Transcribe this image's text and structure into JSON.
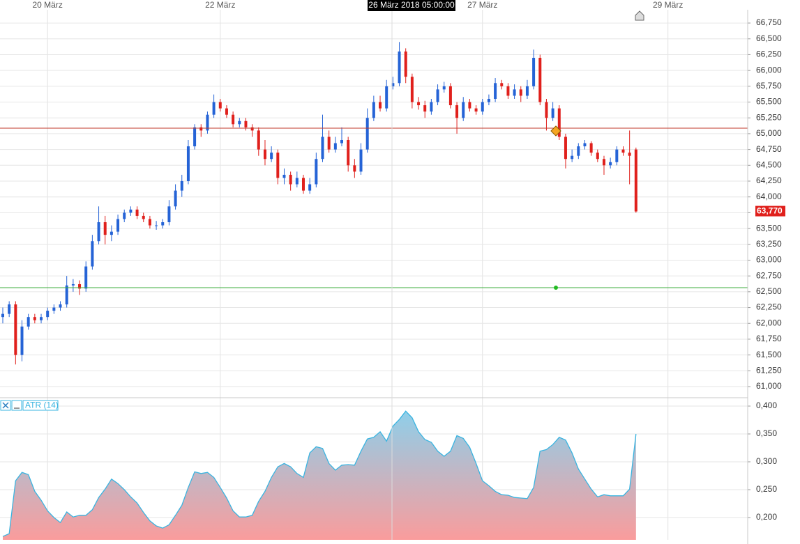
{
  "chart_data": [
    {
      "type": "candlestick",
      "crosshair": {
        "label": "26 März 2018 05:00:00"
      },
      "categories": [
        null,
        null,
        null,
        null,
        null,
        null,
        null,
        "20 März",
        null,
        null,
        null,
        null,
        null,
        null,
        null,
        null,
        null,
        null,
        null,
        null,
        null,
        null,
        null,
        null,
        null,
        null,
        null,
        null,
        null,
        null,
        null,
        null,
        null,
        null,
        "22 März",
        null,
        null,
        null,
        null,
        null,
        null,
        null,
        null,
        null,
        null,
        null,
        null,
        null,
        null,
        null,
        null,
        null,
        null,
        null,
        null,
        null,
        null,
        null,
        null,
        null,
        null,
        null,
        null,
        null,
        null,
        null,
        null,
        null,
        null,
        null,
        null,
        null,
        null,
        null,
        null,
        "27 März",
        null,
        null,
        null,
        null,
        null,
        null,
        null,
        null,
        null,
        null,
        null,
        null,
        null,
        null,
        null,
        null,
        null,
        null,
        null,
        null,
        null,
        null,
        null,
        null,
        null,
        null,
        null,
        null,
        "29 März"
      ],
      "open": [
        62.1,
        62.15,
        62.3,
        61.5,
        61.95,
        62.1,
        62.05,
        62.1,
        62.2,
        62.25,
        62.3,
        62.6,
        62.62,
        62.55,
        62.9,
        63.3,
        63.6,
        63.4,
        63.45,
        63.65,
        63.75,
        63.8,
        63.7,
        63.65,
        63.55,
        63.55,
        63.6,
        63.85,
        64.1,
        64.25,
        64.8,
        65.1,
        65.05,
        65.3,
        65.5,
        65.4,
        65.3,
        65.15,
        65.2,
        65.1,
        65.05,
        64.75,
        64.6,
        64.7,
        64.3,
        64.35,
        64.2,
        64.3,
        64.1,
        64.2,
        64.6,
        64.95,
        64.75,
        64.85,
        64.9,
        64.5,
        64.4,
        64.75,
        65.25,
        65.5,
        65.4,
        65.75,
        65.8,
        66.3,
        65.9,
        65.5,
        65.45,
        65.35,
        65.5,
        65.7,
        65.75,
        65.45,
        65.25,
        65.5,
        65.4,
        65.35,
        65.5,
        65.55,
        65.8,
        65.75,
        65.6,
        65.7,
        65.6,
        65.75,
        66.2,
        65.5,
        65.25,
        65.4,
        64.95,
        64.6,
        64.65,
        64.8,
        64.85,
        64.7,
        64.6,
        64.5,
        64.55,
        64.75,
        64.7,
        64.75,
        null,
        null,
        null,
        null,
        null
      ],
      "high": [
        62.25,
        62.35,
        62.35,
        62.05,
        62.15,
        62.15,
        62.15,
        62.25,
        62.3,
        62.35,
        62.75,
        62.7,
        62.68,
        62.98,
        63.4,
        63.85,
        63.7,
        63.55,
        63.72,
        63.8,
        63.85,
        63.85,
        63.75,
        63.7,
        63.62,
        63.65,
        63.95,
        64.2,
        64.35,
        64.9,
        65.15,
        65.15,
        65.35,
        65.62,
        65.55,
        65.45,
        65.35,
        65.25,
        65.25,
        65.15,
        65.1,
        64.9,
        64.8,
        64.75,
        64.45,
        64.4,
        64.4,
        64.35,
        64.3,
        64.7,
        65.3,
        65.05,
        64.95,
        65.1,
        64.95,
        64.6,
        64.85,
        65.4,
        65.6,
        65.6,
        65.85,
        65.9,
        66.45,
        66.35,
        65.95,
        65.58,
        65.52,
        65.55,
        65.78,
        65.82,
        65.8,
        65.5,
        65.58,
        65.55,
        65.45,
        65.55,
        65.62,
        65.88,
        65.85,
        65.8,
        65.78,
        65.75,
        65.85,
        66.33,
        66.25,
        65.55,
        65.5,
        65.45,
        65.0,
        64.75,
        64.85,
        64.9,
        64.88,
        64.75,
        64.65,
        64.62,
        64.8,
        64.8,
        65.05,
        64.78,
        null,
        null,
        null,
        null,
        null
      ],
      "low": [
        62.0,
        62.1,
        61.35,
        61.4,
        61.9,
        62.0,
        62.0,
        62.05,
        62.15,
        62.2,
        62.25,
        62.5,
        62.45,
        62.5,
        62.85,
        63.25,
        63.25,
        63.3,
        63.4,
        63.6,
        63.7,
        63.65,
        63.6,
        63.5,
        63.48,
        63.5,
        63.55,
        63.8,
        64.0,
        64.2,
        64.75,
        64.95,
        65.0,
        65.25,
        65.35,
        65.25,
        65.1,
        65.1,
        65.05,
        64.95,
        64.65,
        64.5,
        64.55,
        64.2,
        64.2,
        64.1,
        64.15,
        64.05,
        64.05,
        64.15,
        64.55,
        64.7,
        64.7,
        64.8,
        64.4,
        64.3,
        64.35,
        64.7,
        65.2,
        65.35,
        65.35,
        65.7,
        65.75,
        65.8,
        65.4,
        65.38,
        65.25,
        65.3,
        65.45,
        65.65,
        65.4,
        65.0,
        65.2,
        65.35,
        65.3,
        65.3,
        65.45,
        65.5,
        65.7,
        65.55,
        65.55,
        65.5,
        65.55,
        65.7,
        65.45,
        65.05,
        65.2,
        64.9,
        64.45,
        64.55,
        64.6,
        64.75,
        64.65,
        64.55,
        64.35,
        64.45,
        64.5,
        64.65,
        64.2,
        63.75,
        null,
        null,
        null,
        null,
        null
      ],
      "close": [
        62.15,
        62.3,
        61.5,
        61.95,
        62.1,
        62.05,
        62.1,
        62.2,
        62.25,
        62.3,
        62.6,
        62.62,
        62.55,
        62.9,
        63.3,
        63.6,
        63.4,
        63.45,
        63.65,
        63.75,
        63.8,
        63.7,
        63.65,
        63.55,
        63.55,
        63.6,
        63.85,
        64.1,
        64.25,
        64.8,
        65.1,
        65.05,
        65.3,
        65.5,
        65.4,
        65.3,
        65.15,
        65.2,
        65.1,
        65.05,
        64.75,
        64.6,
        64.7,
        64.3,
        64.35,
        64.2,
        64.3,
        64.1,
        64.2,
        64.6,
        64.95,
        64.75,
        64.85,
        64.9,
        64.5,
        64.4,
        64.75,
        65.25,
        65.5,
        65.4,
        65.75,
        65.8,
        66.3,
        65.9,
        65.5,
        65.45,
        65.35,
        65.5,
        65.7,
        65.75,
        65.45,
        65.25,
        65.5,
        65.4,
        65.35,
        65.5,
        65.55,
        65.8,
        65.75,
        65.6,
        65.7,
        65.6,
        65.75,
        66.2,
        65.5,
        65.25,
        65.4,
        64.95,
        64.6,
        64.65,
        64.8,
        64.85,
        64.7,
        64.6,
        64.5,
        64.55,
        64.75,
        64.7,
        64.65,
        63.77,
        null,
        null,
        null,
        null,
        null
      ],
      "up_color": "#2563d6",
      "down_color": "#e0201c",
      "hlines": [
        {
          "value": 65.087,
          "color": "#c0392b"
        },
        {
          "value": 62.565,
          "color": "#3cae3c"
        }
      ],
      "last_price": {
        "value": 63.77,
        "label": "63,770",
        "color": "#e0201c"
      },
      "ylim": [
        60.835,
        66.96
      ],
      "yticks": [
        {
          "value": 61.0,
          "label": "61,000"
        },
        {
          "value": 61.25,
          "label": "61,250"
        },
        {
          "value": 61.5,
          "label": "61,500"
        },
        {
          "value": 61.75,
          "label": "61,750"
        },
        {
          "value": 62.0,
          "label": "62,000"
        },
        {
          "value": 62.25,
          "label": "62,250"
        },
        {
          "value": 62.5,
          "label": "62,500"
        },
        {
          "value": 62.75,
          "label": "62,750"
        },
        {
          "value": 63.0,
          "label": "63,000"
        },
        {
          "value": 63.25,
          "label": "63,250"
        },
        {
          "value": 63.5,
          "label": "63,500"
        },
        {
          "value": 63.75,
          "label": "63,750"
        },
        {
          "value": 64.0,
          "label": "64,000"
        },
        {
          "value": 64.25,
          "label": "64,250"
        },
        {
          "value": 64.5,
          "label": "64,500"
        },
        {
          "value": 64.75,
          "label": "64,750"
        },
        {
          "value": 65.0,
          "label": "65,000"
        },
        {
          "value": 65.25,
          "label": "65,250"
        },
        {
          "value": 65.5,
          "label": "65,500"
        },
        {
          "value": 65.75,
          "label": "65,750"
        },
        {
          "value": 66.0,
          "label": "66,000"
        },
        {
          "value": 66.25,
          "label": "66,250"
        },
        {
          "value": 66.5,
          "label": "66,500"
        },
        {
          "value": 66.75,
          "label": "66,750"
        }
      ],
      "grid": true
    },
    {
      "type": "area",
      "name": "ATR (14)",
      "color": "#3ab4e0",
      "values": [
        0.166,
        0.171,
        0.266,
        0.281,
        0.277,
        0.247,
        0.231,
        0.212,
        0.2,
        0.191,
        0.21,
        0.201,
        0.204,
        0.204,
        0.214,
        0.236,
        0.251,
        0.269,
        0.261,
        0.25,
        0.237,
        0.226,
        0.209,
        0.194,
        0.185,
        0.181,
        0.187,
        0.204,
        0.222,
        0.254,
        0.282,
        0.279,
        0.281,
        0.272,
        0.254,
        0.235,
        0.212,
        0.201,
        0.201,
        0.204,
        0.229,
        0.247,
        0.272,
        0.291,
        0.297,
        0.291,
        0.279,
        0.272,
        0.316,
        0.327,
        0.324,
        0.297,
        0.285,
        0.294,
        0.295,
        0.294,
        0.319,
        0.341,
        0.344,
        0.354,
        0.337,
        0.364,
        0.376,
        0.391,
        0.379,
        0.354,
        0.34,
        0.335,
        0.319,
        0.31,
        0.319,
        0.347,
        0.342,
        0.326,
        0.297,
        0.266,
        0.257,
        0.247,
        0.241,
        0.24,
        0.236,
        0.235,
        0.234,
        0.254,
        0.319,
        0.322,
        0.331,
        0.344,
        0.339,
        0.316,
        0.287,
        0.269,
        0.251,
        0.237,
        0.241,
        0.239,
        0.239,
        0.239,
        0.251,
        0.35,
        null,
        null,
        null,
        null,
        null
      ],
      "ylim": [
        0.16,
        0.41375
      ],
      "yticks": [
        {
          "value": 0.2,
          "label": "0,200"
        },
        {
          "value": 0.25,
          "label": "0,250"
        },
        {
          "value": 0.3,
          "label": "0,300"
        },
        {
          "value": 0.35,
          "label": "0,350"
        },
        {
          "value": 0.4,
          "label": "0,400"
        }
      ],
      "grid": true
    }
  ]
}
